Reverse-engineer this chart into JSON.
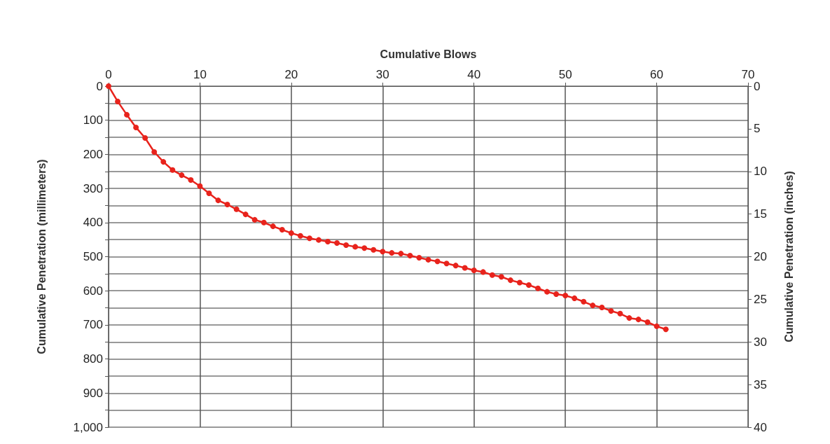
{
  "chart_data": {
    "type": "line",
    "xlabel": "Cumulative Blows",
    "ylabel": "Cumulative Penetration (millimeters)",
    "y2label": "Cumulative Penetration (inches)",
    "x": [
      0,
      1,
      2,
      3,
      4,
      5,
      6,
      7,
      8,
      9,
      10,
      11,
      12,
      13,
      14,
      15,
      16,
      17,
      18,
      19,
      20,
      21,
      22,
      23,
      24,
      25,
      26,
      27,
      28,
      29,
      30,
      31,
      32,
      33,
      34,
      35,
      36,
      37,
      38,
      39,
      40,
      41,
      42,
      43,
      44,
      45,
      46,
      47,
      48,
      49,
      50,
      51,
      52,
      53,
      54,
      55,
      56,
      57,
      58,
      59,
      60,
      61
    ],
    "series": [
      {
        "color": "#e8231c",
        "values": [
          0,
          45,
          84,
          121,
          152,
          193,
          222,
          246,
          261,
          275,
          293,
          314,
          335,
          347,
          361,
          376,
          392,
          400,
          411,
          421,
          431,
          439,
          446,
          451,
          456,
          460,
          466,
          471,
          475,
          480,
          485,
          489,
          491,
          497,
          503,
          509,
          514,
          520,
          526,
          533,
          540,
          545,
          554,
          559,
          569,
          576,
          583,
          593,
          603,
          610,
          614,
          622,
          632,
          643,
          649,
          659,
          667,
          680,
          684,
          692,
          704,
          713
        ]
      }
    ],
    "xlim": [
      0,
      70
    ],
    "xticks": [
      0,
      10,
      20,
      30,
      40,
      50,
      60,
      70
    ],
    "ylim": [
      1000,
      0
    ],
    "yticks": [
      0,
      {
        "value": 50,
        "label": null
      },
      100,
      {
        "value": 150,
        "label": null
      },
      200,
      {
        "value": 250,
        "label": null
      },
      300,
      {
        "value": 350,
        "label": null
      },
      400,
      {
        "value": 450,
        "label": null
      },
      500,
      {
        "value": 550,
        "label": null
      },
      600,
      {
        "value": 650,
        "label": null
      },
      700,
      {
        "value": 750,
        "label": null
      },
      800,
      {
        "value": 850,
        "label": null
      },
      900,
      {
        "value": 950,
        "label": null
      },
      {
        "value": 1000,
        "label": "1,000"
      }
    ],
    "y2lim": [
      40,
      0
    ],
    "y2ticks": [
      0,
      5,
      10,
      15,
      20,
      25,
      30,
      35,
      40
    ],
    "grid": true,
    "marker": "circle",
    "line_style": "solid"
  }
}
